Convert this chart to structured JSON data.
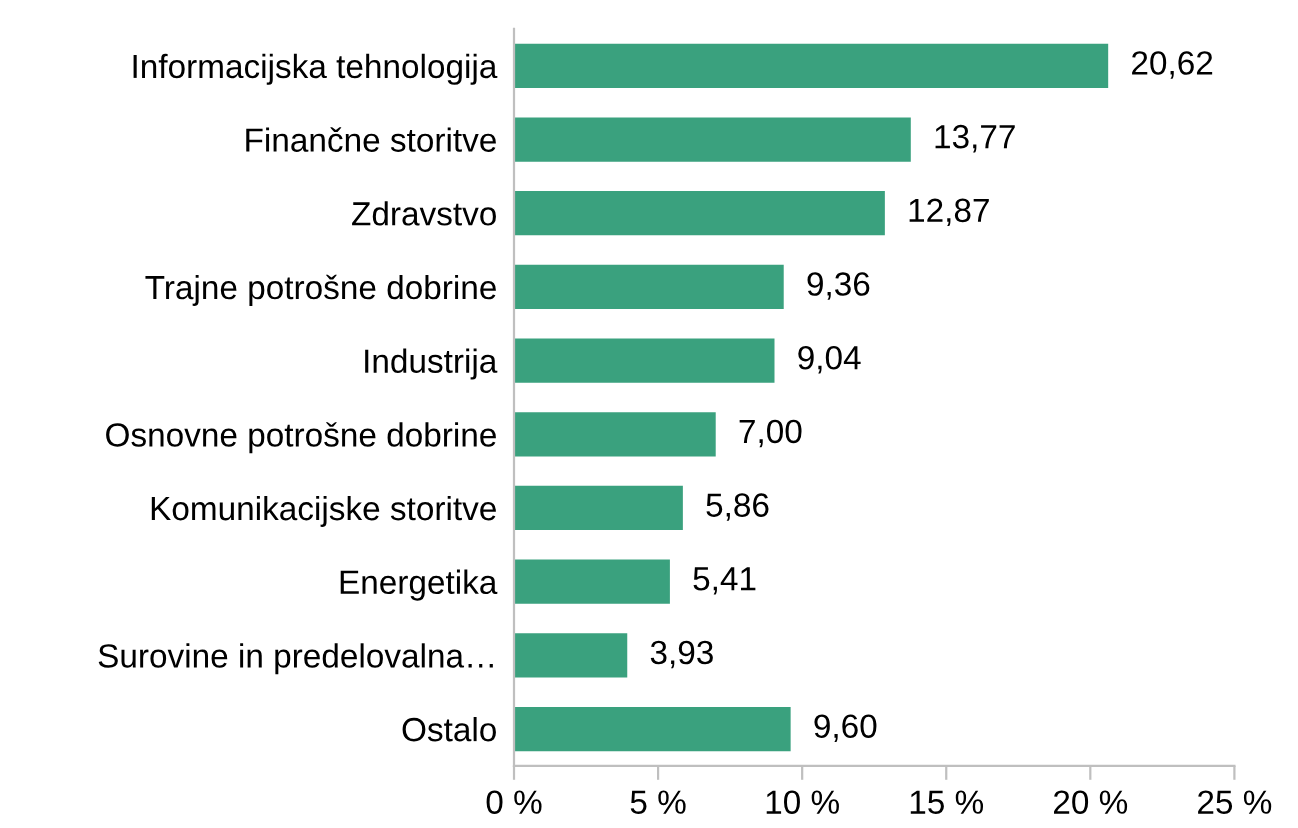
{
  "chart_data": {
    "type": "bar",
    "orientation": "horizontal",
    "categories": [
      "Informacijska tehnologija",
      "Finančne storitve",
      "Zdravstvo",
      "Trajne potrošne dobrine",
      "Industrija",
      "Osnovne potrošne dobrine",
      "Komunikacijske storitve",
      "Energetika",
      "Surovine in predelovalna…",
      "Ostalo"
    ],
    "values": [
      20.62,
      13.77,
      12.87,
      9.36,
      9.04,
      7.0,
      5.86,
      5.41,
      3.93,
      9.6
    ],
    "value_labels": [
      "20,62",
      "13,77",
      "12,87",
      "9,36",
      "9,04",
      "7,00",
      "5,86",
      "5,41",
      "3,93",
      "9,60"
    ],
    "color": "#3aa17e",
    "xlim": [
      0,
      25
    ],
    "xticks": [
      {
        "value": 0,
        "label": "0 %"
      },
      {
        "value": 5,
        "label": "5 %"
      },
      {
        "value": 10,
        "label": "10 %"
      },
      {
        "value": 15,
        "label": "15 %"
      },
      {
        "value": 20,
        "label": "20 %"
      },
      {
        "value": 25,
        "label": "25 %"
      }
    ],
    "grid": false,
    "legend": false
  }
}
